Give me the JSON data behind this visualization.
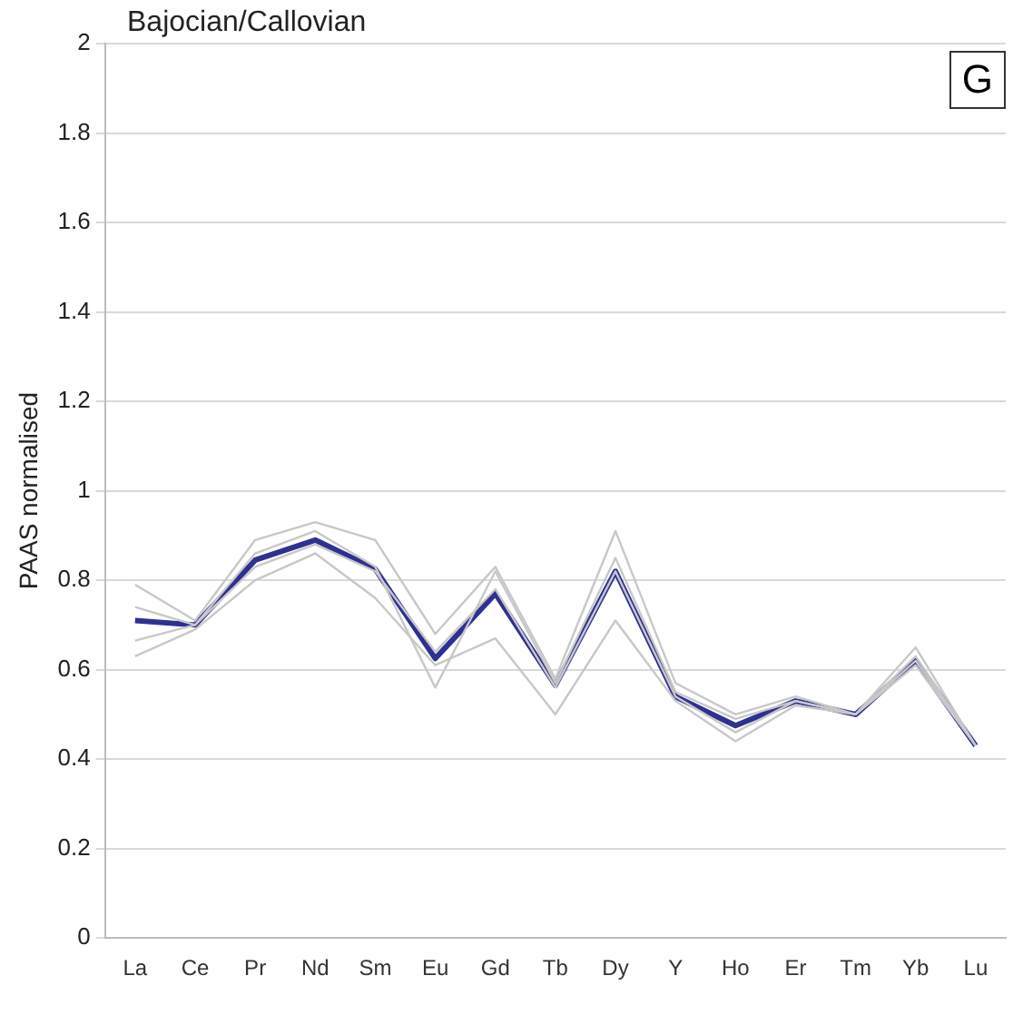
{
  "chart_data": {
    "type": "line",
    "title": "Bajocian/Callovian",
    "ylabel": "PAAS normalised",
    "annotations": [
      "G"
    ],
    "categories": [
      "La",
      "Ce",
      "Pr",
      "Nd",
      "Sm",
      "Eu",
      "Gd",
      "Tb",
      "Dy",
      "Y",
      "Ho",
      "Er",
      "Tm",
      "Yb",
      "Lu"
    ],
    "series": [
      {
        "color": "#c8c8c8",
        "values": [
          0.79,
          0.71,
          0.89,
          0.93,
          0.89,
          0.68,
          0.83,
          0.58,
          0.91,
          0.57,
          0.5,
          0.54,
          0.5,
          0.65,
          0.43
        ]
      },
      {
        "color": "#c8c8c8",
        "values": [
          0.63,
          0.69,
          0.8,
          0.86,
          0.76,
          0.61,
          0.67,
          0.5,
          0.71,
          0.53,
          0.44,
          0.52,
          0.5,
          0.61,
          0.43
        ]
      },
      {
        "color": "#c8c8c8",
        "values": [
          0.74,
          0.7,
          0.86,
          0.91,
          0.83,
          0.56,
          0.82,
          0.57,
          0.85,
          0.55,
          0.49,
          0.53,
          0.5,
          0.63,
          0.43
        ]
      },
      {
        "color": "#c8c8c8",
        "values": [
          0.665,
          0.7,
          0.83,
          0.88,
          0.82,
          0.64,
          0.78,
          0.56,
          0.82,
          0.54,
          0.46,
          0.53,
          0.5,
          0.62,
          0.43
        ]
      },
      {
        "color": "#2e3192",
        "values": [
          0.71,
          0.7,
          0.845,
          0.89,
          0.825,
          0.625,
          0.77,
          0.565,
          0.82,
          0.54,
          0.475,
          0.53,
          0.5,
          0.62,
          0.43
        ]
      }
    ],
    "ylim": [
      0,
      2
    ],
    "yticks": [
      0,
      0.2,
      0.4,
      0.6,
      0.8,
      1,
      1.2,
      1.4,
      1.6,
      1.8,
      2
    ],
    "grid": "y",
    "legend": false,
    "marker": "none",
    "line_style": "solid"
  }
}
